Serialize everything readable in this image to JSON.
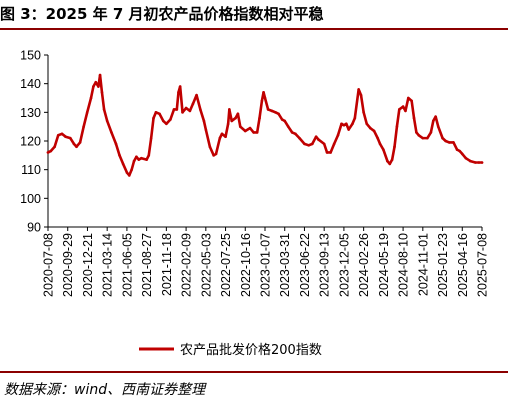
{
  "header": {
    "title": "图 3：2025 年 7 月初农产品价格指数相对平稳"
  },
  "footer": {
    "source": "数据来源：wind、西南证券整理"
  },
  "colors": {
    "line": "#c00000",
    "rule": "#8b0000"
  },
  "chart_data": {
    "type": "line",
    "title": "",
    "xlabel": "",
    "ylabel": "",
    "ylim": [
      90,
      150
    ],
    "yticks": [
      90,
      100,
      110,
      120,
      130,
      140,
      150
    ],
    "grid": false,
    "legend_position": "bottom-center",
    "x_tick_labels": [
      "2020-07-08",
      "2020-09-29",
      "2020-12-21",
      "2021-03-14",
      "2021-06-05",
      "2021-08-27",
      "2021-11-18",
      "2022-02-09",
      "2022-05-03",
      "2022-07-25",
      "2022-10-16",
      "2023-01-07",
      "2023-03-31",
      "2023-06-22",
      "2023-09-13",
      "2023-12-05",
      "2024-02-26",
      "2024-05-19",
      "2024-08-10",
      "2024-11-01",
      "2025-01-23",
      "2025-04-16",
      "2025-07-08"
    ],
    "x_range": [
      "2020-07-08",
      "2025-07-08"
    ],
    "series": [
      {
        "name": "农产品批发价格200指数",
        "color": "#c00000",
        "points": [
          [
            "2020-07-08",
            116.0
          ],
          [
            "2020-07-20",
            116.5
          ],
          [
            "2020-08-05",
            118.0
          ],
          [
            "2020-08-20",
            122.0
          ],
          [
            "2020-09-05",
            122.5
          ],
          [
            "2020-09-20",
            121.5
          ],
          [
            "2020-10-10",
            121.0
          ],
          [
            "2020-10-25",
            119.0
          ],
          [
            "2020-11-05",
            118.0
          ],
          [
            "2020-11-20",
            119.5
          ],
          [
            "2020-12-05",
            125.0
          ],
          [
            "2020-12-20",
            130.0
          ],
          [
            "2021-01-05",
            135.0
          ],
          [
            "2021-01-15",
            139.0
          ],
          [
            "2021-01-25",
            140.5
          ],
          [
            "2021-02-05",
            139.0
          ],
          [
            "2021-02-12",
            143.0
          ],
          [
            "2021-02-20",
            137.0
          ],
          [
            "2021-03-01",
            131.0
          ],
          [
            "2021-03-14",
            127.0
          ],
          [
            "2021-04-01",
            123.0
          ],
          [
            "2021-04-20",
            119.0
          ],
          [
            "2021-05-05",
            115.0
          ],
          [
            "2021-05-20",
            112.0
          ],
          [
            "2021-06-05",
            109.0
          ],
          [
            "2021-06-15",
            108.0
          ],
          [
            "2021-06-25",
            110.0
          ],
          [
            "2021-07-05",
            113.0
          ],
          [
            "2021-07-15",
            114.5
          ],
          [
            "2021-07-25",
            113.5
          ],
          [
            "2021-08-05",
            114.0
          ],
          [
            "2021-08-27",
            113.5
          ],
          [
            "2021-09-05",
            115.0
          ],
          [
            "2021-09-15",
            121.0
          ],
          [
            "2021-09-25",
            128.0
          ],
          [
            "2021-10-05",
            130.0
          ],
          [
            "2021-10-20",
            129.5
          ],
          [
            "2021-11-05",
            127.0
          ],
          [
            "2021-11-18",
            126.0
          ],
          [
            "2021-12-05",
            127.5
          ],
          [
            "2021-12-20",
            131.0
          ],
          [
            "2022-01-01",
            131.0
          ],
          [
            "2022-01-08",
            137.0
          ],
          [
            "2022-01-15",
            139.0
          ],
          [
            "2022-01-25",
            130.0
          ],
          [
            "2022-02-09",
            131.5
          ],
          [
            "2022-02-25",
            130.5
          ],
          [
            "2022-03-10",
            133.0
          ],
          [
            "2022-03-25",
            136.0
          ],
          [
            "2022-04-10",
            131.0
          ],
          [
            "2022-04-25",
            127.0
          ],
          [
            "2022-05-03",
            124.0
          ],
          [
            "2022-05-20",
            118.0
          ],
          [
            "2022-06-05",
            115.0
          ],
          [
            "2022-06-15",
            115.5
          ],
          [
            "2022-07-01",
            121.0
          ],
          [
            "2022-07-10",
            122.5
          ],
          [
            "2022-07-25",
            121.5
          ],
          [
            "2022-08-05",
            126.0
          ],
          [
            "2022-08-10",
            131.0
          ],
          [
            "2022-08-20",
            127.0
          ],
          [
            "2022-09-05",
            128.0
          ],
          [
            "2022-09-15",
            129.5
          ],
          [
            "2022-09-25",
            125.0
          ],
          [
            "2022-10-16",
            123.5
          ],
          [
            "2022-11-05",
            124.5
          ],
          [
            "2022-11-20",
            123.0
          ],
          [
            "2022-12-05",
            123.0
          ],
          [
            "2022-12-15",
            128.0
          ],
          [
            "2022-12-25",
            134.0
          ],
          [
            "2023-01-01",
            137.0
          ],
          [
            "2023-01-07",
            135.0
          ],
          [
            "2023-01-20",
            131.0
          ],
          [
            "2023-02-05",
            130.5
          ],
          [
            "2023-02-20",
            130.0
          ],
          [
            "2023-03-05",
            129.5
          ],
          [
            "2023-03-20",
            127.5
          ],
          [
            "2023-03-31",
            127.0
          ],
          [
            "2023-04-15",
            125.0
          ],
          [
            "2023-05-01",
            123.0
          ],
          [
            "2023-05-15",
            122.5
          ],
          [
            "2023-06-01",
            121.0
          ],
          [
            "2023-06-22",
            119.0
          ],
          [
            "2023-07-10",
            118.5
          ],
          [
            "2023-07-25",
            119.0
          ],
          [
            "2023-08-10",
            121.5
          ],
          [
            "2023-08-20",
            120.5
          ],
          [
            "2023-09-13",
            119.0
          ],
          [
            "2023-09-25",
            116.0
          ],
          [
            "2023-10-10",
            116.0
          ],
          [
            "2023-10-25",
            119.0
          ],
          [
            "2023-11-10",
            122.0
          ],
          [
            "2023-11-25",
            126.0
          ],
          [
            "2023-12-05",
            125.5
          ],
          [
            "2023-12-15",
            126.0
          ],
          [
            "2023-12-25",
            124.0
          ],
          [
            "2024-01-10",
            126.0
          ],
          [
            "2024-01-20",
            128.0
          ],
          [
            "2024-02-05",
            138.0
          ],
          [
            "2024-02-15",
            136.0
          ],
          [
            "2024-02-26",
            130.0
          ],
          [
            "2024-03-10",
            126.0
          ],
          [
            "2024-03-25",
            124.5
          ],
          [
            "2024-04-10",
            123.5
          ],
          [
            "2024-04-25",
            121.0
          ],
          [
            "2024-05-05",
            119.0
          ],
          [
            "2024-05-19",
            117.0
          ],
          [
            "2024-06-05",
            113.0
          ],
          [
            "2024-06-15",
            112.0
          ],
          [
            "2024-06-25",
            113.5
          ],
          [
            "2024-07-05",
            118.0
          ],
          [
            "2024-07-15",
            125.0
          ],
          [
            "2024-07-25",
            131.0
          ],
          [
            "2024-08-10",
            132.0
          ],
          [
            "2024-08-20",
            130.5
          ],
          [
            "2024-09-01",
            135.0
          ],
          [
            "2024-09-15",
            134.0
          ],
          [
            "2024-09-25",
            128.0
          ],
          [
            "2024-10-05",
            123.0
          ],
          [
            "2024-10-15",
            122.0
          ],
          [
            "2024-11-01",
            121.0
          ],
          [
            "2024-11-20",
            121.0
          ],
          [
            "2024-12-05",
            123.0
          ],
          [
            "2024-12-15",
            127.0
          ],
          [
            "2024-12-25",
            128.5
          ],
          [
            "2025-01-05",
            125.0
          ],
          [
            "2025-01-23",
            121.0
          ],
          [
            "2025-02-05",
            120.0
          ],
          [
            "2025-02-20",
            119.5
          ],
          [
            "2025-03-10",
            119.5
          ],
          [
            "2025-03-25",
            117.0
          ],
          [
            "2025-04-05",
            116.5
          ],
          [
            "2025-04-16",
            115.5
          ],
          [
            "2025-05-01",
            114.0
          ],
          [
            "2025-05-20",
            113.0
          ],
          [
            "2025-06-10",
            112.5
          ],
          [
            "2025-06-25",
            112.5
          ],
          [
            "2025-07-08",
            112.5
          ]
        ]
      }
    ]
  }
}
